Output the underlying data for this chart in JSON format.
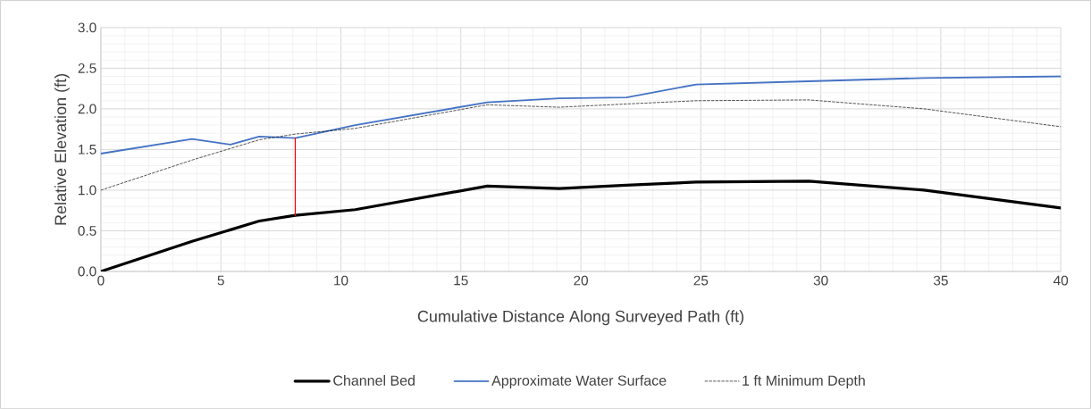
{
  "chart_data": {
    "type": "line",
    "xlabel": "Cumulative Distance Along Surveyed Path (ft)",
    "ylabel": "Relative Elevation (ft)",
    "x": [
      0,
      3.8,
      6.6,
      8.1,
      10.6,
      16.1,
      19.1,
      21.9,
      24.8,
      29.5,
      34.3,
      40
    ],
    "series": [
      {
        "name": "Channel Bed",
        "color": "#000000",
        "line_style": "solid",
        "values": [
          0,
          0.37,
          0.62,
          0.69,
          0.76,
          1.05,
          1.02,
          1.06,
          1.1,
          1.11,
          1.0,
          0.78
        ]
      },
      {
        "name": "Approximate Water Surface",
        "color": "#4472c4",
        "line_style": "solid",
        "x": [
          0,
          3.8,
          5.4,
          6.6,
          8.1,
          10.6,
          16.1,
          19.1,
          21.9,
          24.8,
          29.5,
          34.3,
          40
        ],
        "values": [
          1.45,
          1.63,
          1.56,
          1.66,
          1.64,
          1.8,
          2.08,
          2.13,
          2.14,
          2.3,
          2.34,
          2.38,
          2.4
        ]
      },
      {
        "name": "1 ft Minimum Depth",
        "color": "#000000",
        "line_style": "dashed",
        "values": [
          1.0,
          1.37,
          1.62,
          1.69,
          1.76,
          2.05,
          2.02,
          2.06,
          2.1,
          2.11,
          2.0,
          1.78
        ]
      },
      {
        "color": "#ff0000",
        "line_style": "solid",
        "x": [
          8.1,
          8.1
        ],
        "values": [
          0.69,
          1.64
        ]
      }
    ],
    "xlim": [
      0,
      40
    ],
    "xticks": [
      0,
      5,
      10,
      15,
      20,
      25,
      30,
      35,
      40
    ],
    "ylim": [
      0,
      3
    ],
    "yticks": [
      {
        "value": 0,
        "label": "0.0"
      },
      {
        "value": 0.5,
        "label": "0.5"
      },
      {
        "value": 1,
        "label": "1.0"
      },
      {
        "value": 1.5,
        "label": "1.5"
      },
      {
        "value": 2,
        "label": "2.0"
      },
      {
        "value": 2.5,
        "label": "2.5"
      },
      {
        "value": 3,
        "label": "3.0"
      }
    ],
    "grid": true,
    "legend": "bottom",
    "marker": "none"
  }
}
